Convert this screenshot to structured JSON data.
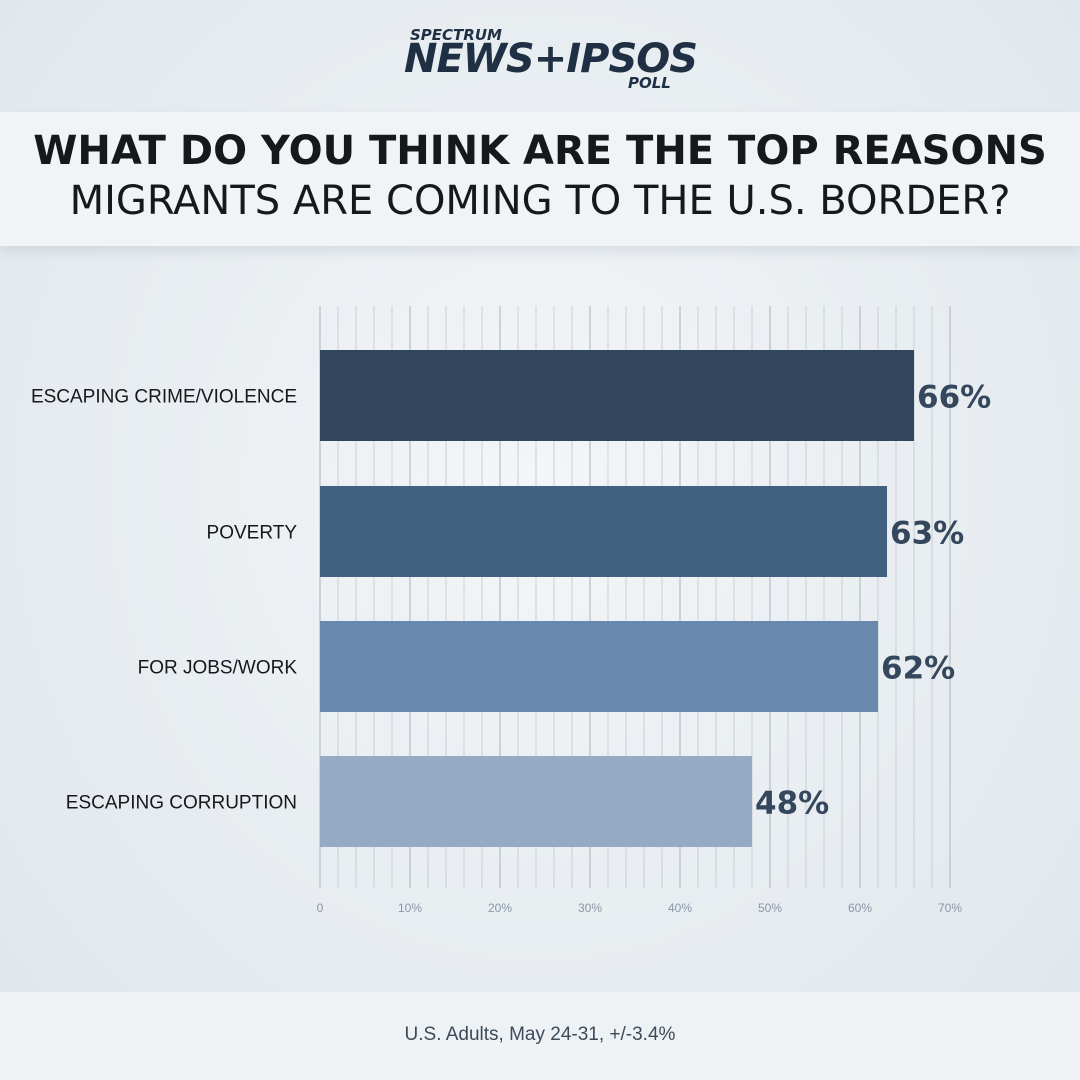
{
  "logo": {
    "line1": "SPECTRUM",
    "line2": "NEWS+IPSOS",
    "line3": "POLL"
  },
  "title": {
    "line1": "WHAT DO YOU THINK ARE THE TOP REASONS",
    "line2": "MIGRANTS ARE COMING TO THE U.S. BORDER?"
  },
  "footer": "U.S. Adults, May 24-31, +/-3.4%",
  "colors": {
    "text_dark": "#16181c",
    "label_value": "#34475c",
    "axis_tick": "#8a97a6",
    "grid": "#b9c2cb"
  },
  "chart_data": {
    "type": "bar",
    "orientation": "horizontal",
    "categories": [
      "ESCAPING CRIME/VIOLENCE",
      "POVERTY",
      "FOR JOBS/WORK",
      "ESCAPING CORRUPTION"
    ],
    "values": [
      66,
      63,
      62,
      48
    ],
    "value_labels": [
      "66%",
      "63%",
      "62%",
      "48%"
    ],
    "bar_colors": [
      "#31465c",
      "#42607f",
      "#6889ad",
      "#95abc4"
    ],
    "xlim": [
      0,
      70
    ],
    "xticks": [
      0,
      10,
      20,
      30,
      40,
      50,
      60,
      70
    ],
    "xtick_labels": [
      "0",
      "10%",
      "20%",
      "30%",
      "40%",
      "50%",
      "60%",
      "70%"
    ],
    "minor_grid_step": 2,
    "grid": true
  }
}
